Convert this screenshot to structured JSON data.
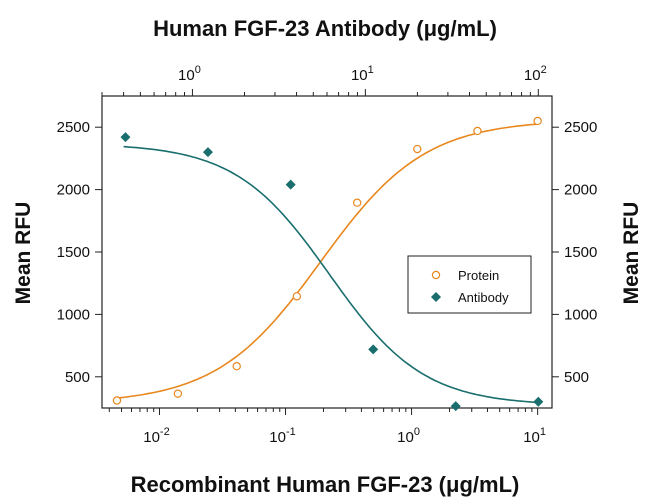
{
  "chart_data": {
    "type": "scatter",
    "title": "",
    "top_axis": {
      "label": "Human FGF-23 Antibody (μg/mL)",
      "scale": "log",
      "ticks": [
        {
          "base": "10",
          "exp": "0",
          "value": 1
        },
        {
          "base": "10",
          "exp": "1",
          "value": 10
        },
        {
          "base": "10",
          "exp": "2",
          "value": 100
        }
      ],
      "range": [
        0.3,
        120
      ]
    },
    "bottom_axis": {
      "label": "Recombinant Human FGF-23 (μg/mL)",
      "scale": "log",
      "ticks": [
        {
          "base": "10",
          "exp": "-2",
          "value": 0.01
        },
        {
          "base": "10",
          "exp": "-1",
          "value": 0.1
        },
        {
          "base": "10",
          "exp": "0",
          "value": 1
        },
        {
          "base": "10",
          "exp": "1",
          "value": 10
        }
      ],
      "range": [
        0.0035,
        13
      ]
    },
    "left_axis": {
      "label": "Mean RFU",
      "ticks": [
        "500",
        "1000",
        "1500",
        "2000",
        "2500"
      ],
      "range": [
        250,
        2750
      ]
    },
    "right_axis": {
      "label": "Mean RFU",
      "ticks": [
        "500",
        "1000",
        "1500",
        "2000",
        "2500"
      ],
      "range": [
        250,
        2750
      ]
    },
    "grid": false,
    "legend_position": "center-right",
    "series": [
      {
        "name": "Protein",
        "axis": "bottom",
        "marker": "open-circle",
        "color": "#e8871e",
        "x": [
          0.0046,
          0.014,
          0.041,
          0.123,
          0.37,
          1.11,
          3.33,
          10
        ],
        "y": [
          310,
          365,
          585,
          1145,
          1895,
          2325,
          2470,
          2550
        ]
      },
      {
        "name": "Antibody",
        "axis": "top",
        "marker": "filled-diamond",
        "color": "#1a6e6e",
        "x": [
          0.41,
          1.23,
          3.7,
          11.1,
          33.3,
          100
        ],
        "y": [
          2420,
          2300,
          2040,
          720,
          265,
          300
        ]
      }
    ]
  }
}
